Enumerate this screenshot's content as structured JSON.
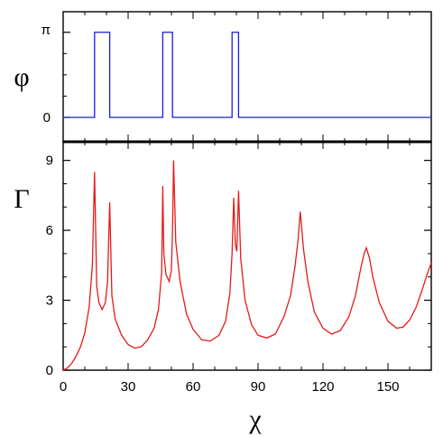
{
  "chart_data": [
    {
      "type": "line",
      "panel": "top",
      "ylabel": "φ",
      "xlabel": "",
      "xlim": [
        0,
        170
      ],
      "ylim": [
        -0.9,
        3.9
      ],
      "yticks": [
        {
          "value": 0,
          "label": "0"
        },
        {
          "value": 3.14159,
          "label": "π"
        }
      ],
      "grid": false,
      "legend": "none",
      "color": "#1a1ae6",
      "series": [
        {
          "x": [
            0,
            14.5,
            14.5,
            21.5,
            21.5,
            46,
            46,
            50.5,
            50.5,
            78,
            78,
            81,
            81,
            170
          ],
          "y": [
            0,
            0,
            3.14159,
            3.14159,
            0,
            0,
            3.14159,
            3.14159,
            0,
            0,
            3.14159,
            3.14159,
            0,
            0
          ]
        }
      ]
    },
    {
      "type": "line",
      "panel": "bottom",
      "ylabel": "Γ",
      "xlabel": "χ",
      "xlim": [
        0,
        170
      ],
      "ylim": [
        0,
        9.8
      ],
      "xticks": [
        {
          "value": 0,
          "label": "0"
        },
        {
          "value": 30,
          "label": "30"
        },
        {
          "value": 60,
          "label": "60"
        },
        {
          "value": 90,
          "label": "90"
        },
        {
          "value": 120,
          "label": "120"
        },
        {
          "value": 150,
          "label": "150"
        }
      ],
      "yticks": [
        {
          "value": 0,
          "label": "0"
        },
        {
          "value": 3,
          "label": "3"
        },
        {
          "value": 6,
          "label": "6"
        },
        {
          "value": 9,
          "label": "9"
        }
      ],
      "grid": false,
      "legend": "none",
      "color": "#e61a1a",
      "series": [
        {
          "x": [
            0,
            2,
            4,
            6,
            8,
            10,
            12,
            13.5,
            14.5,
            15.5,
            16.5,
            18,
            19.5,
            20.5,
            21.5,
            22.5,
            24,
            27,
            30,
            33,
            36,
            39,
            42,
            44,
            45.5,
            46,
            46.5,
            47.5,
            49,
            50,
            50.5,
            51,
            52,
            54,
            57,
            60,
            64,
            68,
            72,
            75,
            77,
            78,
            78.8,
            79.5,
            80.2,
            81,
            82,
            84,
            87,
            90,
            94,
            98,
            102,
            105,
            107,
            108.5,
            109.5,
            111,
            113,
            116,
            120,
            124,
            128,
            132,
            135,
            137.5,
            139,
            140,
            141.5,
            143,
            146,
            150,
            154,
            157,
            160,
            163,
            166,
            168,
            170
          ],
          "y": [
            0,
            0.1,
            0.3,
            0.6,
            1.0,
            1.6,
            2.7,
            4.5,
            8.5,
            3.6,
            2.9,
            2.6,
            2.9,
            3.8,
            7.2,
            3.2,
            2.2,
            1.5,
            1.1,
            0.95,
            1.0,
            1.3,
            1.8,
            2.6,
            4.2,
            7.9,
            5.0,
            4.1,
            3.8,
            4.3,
            6.0,
            9.0,
            5.5,
            3.8,
            2.4,
            1.75,
            1.3,
            1.25,
            1.5,
            2.1,
            3.3,
            5.0,
            7.4,
            5.4,
            5.1,
            7.7,
            4.8,
            3.0,
            1.95,
            1.5,
            1.38,
            1.55,
            2.3,
            3.2,
            4.4,
            5.6,
            6.8,
            5.2,
            3.8,
            2.5,
            1.8,
            1.55,
            1.7,
            2.3,
            3.2,
            4.4,
            5.0,
            5.25,
            4.8,
            4.0,
            2.9,
            2.1,
            1.8,
            1.85,
            2.15,
            2.7,
            3.5,
            4.1,
            4.6
          ]
        }
      ]
    }
  ]
}
